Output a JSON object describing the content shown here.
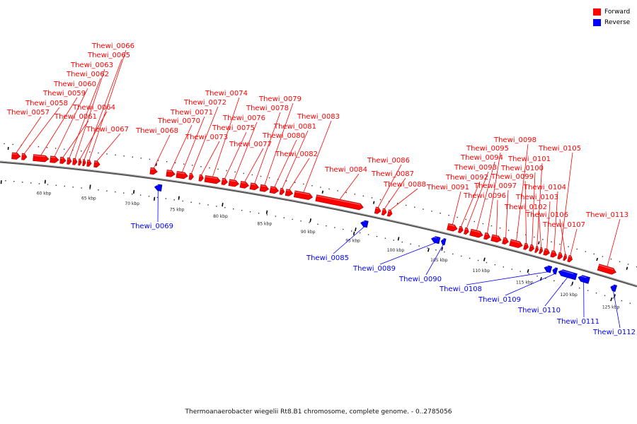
{
  "colors": {
    "forward": "#ff0000",
    "reverse": "#0000ff",
    "axis": "#555555"
  },
  "legend": {
    "forward": "Forward",
    "reverse": "Reverse"
  },
  "caption": "Thermoanaerobacter wiegelii Rt8.B1 chromosome, complete genome. - 0..2785056",
  "ticks": [
    "60 kbp",
    "65 kbp",
    "70 kbp",
    "75 kbp",
    "80 kbp",
    "85 kbp",
    "90 kbp",
    "95 kbp",
    "100 kbp",
    "105 kbp",
    "110 kbp",
    "115 kbp",
    "120 kbp",
    "125 kbp"
  ],
  "forward_genes": [
    "Thewi_0057",
    "Thewi_0058",
    "Thewi_0059",
    "Thewi_0060",
    "Thewi_0061",
    "Thewi_0062",
    "Thewi_0063",
    "Thewi_0064",
    "Thewi_0065",
    "Thewi_0066",
    "Thewi_0067",
    "Thewi_0068",
    "Thewi_0070",
    "Thewi_0071",
    "Thewi_0072",
    "Thewi_0073",
    "Thewi_0074",
    "Thewi_0075",
    "Thewi_0076",
    "Thewi_0077",
    "Thewi_0078",
    "Thewi_0079",
    "Thewi_0080",
    "Thewi_0081",
    "Thewi_0082",
    "Thewi_0083",
    "Thewi_0084",
    "Thewi_0086",
    "Thewi_0087",
    "Thewi_0088",
    "Thewi_0091",
    "Thewi_0092",
    "Thewi_0093",
    "Thewi_0094",
    "Thewi_0095",
    "Thewi_0096",
    "Thewi_0097",
    "Thewi_0098",
    "Thewi_0099",
    "Thewi_0100",
    "Thewi_0101",
    "Thewi_0102",
    "Thewi_0103",
    "Thewi_0104",
    "Thewi_0105",
    "Thewi_0106",
    "Thewi_0107",
    "Thewi_0113"
  ],
  "reverse_genes": [
    "Thewi_0069",
    "Thewi_0085",
    "Thewi_0089",
    "Thewi_0090",
    "Thewi_0108",
    "Thewi_0109",
    "Thewi_0110",
    "Thewi_0111",
    "Thewi_0112"
  ]
}
